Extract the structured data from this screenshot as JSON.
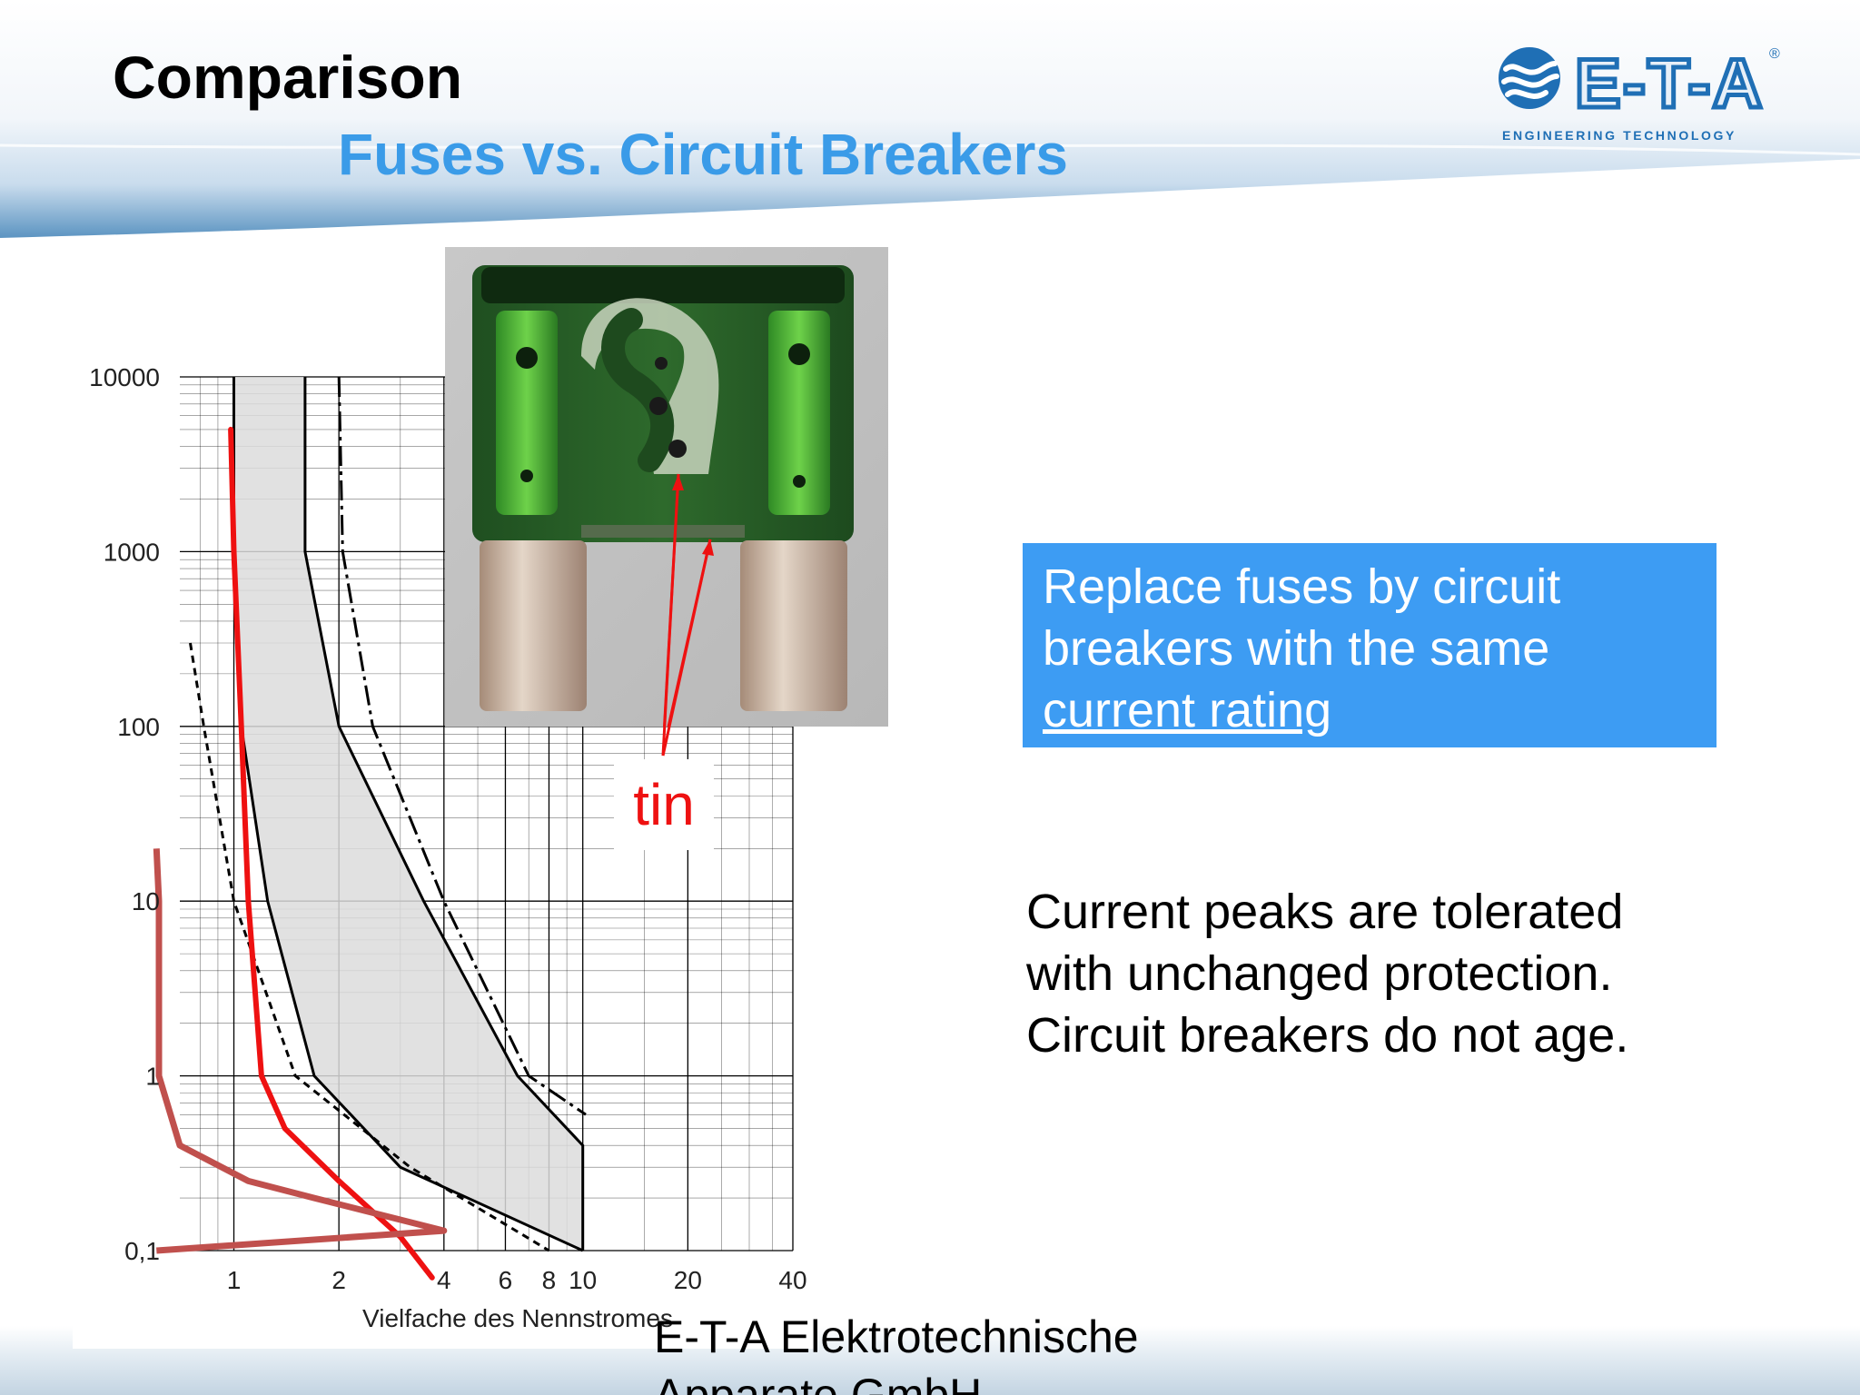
{
  "header": {
    "title": "Comparison",
    "subtitle": "Fuses vs. Circuit Breakers",
    "logo": {
      "brand_text": "E-T-A",
      "tagline": "ENGINEERING TECHNOLOGY",
      "registered_mark": "®",
      "color": "#1f6fb5"
    }
  },
  "photo": {
    "label": "tin"
  },
  "callout": {
    "line1": "Replace fuses by circuit",
    "line2": "breakers with the same",
    "line3_underlined": "current rating"
  },
  "body": {
    "line1": "Current peaks are tolerated",
    "line2": "with unchanged protection.",
    "line3": "Circuit breakers do not age."
  },
  "footer": {
    "line1": "E-T-A Elektrotechnische",
    "line2": "Apparate GmbH"
  },
  "chart_data": {
    "type": "line",
    "xlabel": "Vielfache des Nennstromes",
    "ylabel": "",
    "x_scale": "log",
    "y_scale": "log",
    "xlim": [
      0.7,
      40
    ],
    "ylim": [
      0.1,
      10000
    ],
    "x_ticks": [
      1,
      2,
      4,
      6,
      8,
      10,
      20,
      40
    ],
    "x_tick_labels": [
      "1",
      "2",
      "4",
      "6",
      "8",
      "10",
      "20",
      "40"
    ],
    "y_ticks": [
      0.1,
      1,
      10,
      100,
      1000,
      10000
    ],
    "y_tick_labels": [
      "0,1",
      "1",
      "10",
      "100",
      "1000",
      "10000"
    ],
    "grid": true,
    "colors": {
      "fuse_curve": "#ee1111",
      "current_peak": "#c0504d",
      "band_fill": "#dcdcdc",
      "curve": "#000000"
    },
    "series": [
      {
        "style": "solid",
        "points": [
          [
            1.0,
            10000
          ],
          [
            1.0,
            1000
          ],
          [
            1.05,
            100
          ],
          [
            1.25,
            10
          ],
          [
            1.7,
            1
          ],
          [
            3.0,
            0.3
          ],
          [
            10.0,
            0.1
          ]
        ]
      },
      {
        "style": "solid",
        "points": [
          [
            1.6,
            10000
          ],
          [
            1.6,
            1000
          ],
          [
            2.0,
            100
          ],
          [
            3.5,
            10
          ],
          [
            6.5,
            1
          ],
          [
            10.0,
            0.4
          ],
          [
            10.0,
            0.1
          ]
        ]
      },
      {
        "style": "dashdot",
        "points": [
          [
            2.0,
            10000
          ],
          [
            2.05,
            1000
          ],
          [
            2.5,
            100
          ],
          [
            4.0,
            10
          ],
          [
            7.0,
            1
          ],
          [
            10.2,
            0.6
          ]
        ]
      },
      {
        "style": "dashed",
        "points": [
          [
            0.75,
            300
          ],
          [
            0.82,
            100
          ],
          [
            1.0,
            10
          ],
          [
            1.5,
            1
          ],
          [
            3.2,
            0.3
          ],
          [
            8.0,
            0.1
          ]
        ]
      },
      {
        "style": "fuse",
        "points": [
          [
            0.98,
            5000
          ],
          [
            1.0,
            1000
          ],
          [
            1.05,
            100
          ],
          [
            1.1,
            10
          ],
          [
            1.2,
            1
          ],
          [
            1.4,
            0.5
          ],
          [
            2.0,
            0.25
          ],
          [
            3.0,
            0.12
          ],
          [
            3.7,
            0.07
          ]
        ]
      },
      {
        "style": "peak",
        "points": [
          [
            0.6,
            0.1
          ],
          [
            4.0,
            0.13
          ],
          [
            1.7,
            0.2
          ],
          [
            1.1,
            0.25
          ],
          [
            0.7,
            0.4
          ],
          [
            0.61,
            1
          ],
          [
            0.61,
            10
          ],
          [
            0.6,
            20
          ]
        ]
      }
    ]
  }
}
